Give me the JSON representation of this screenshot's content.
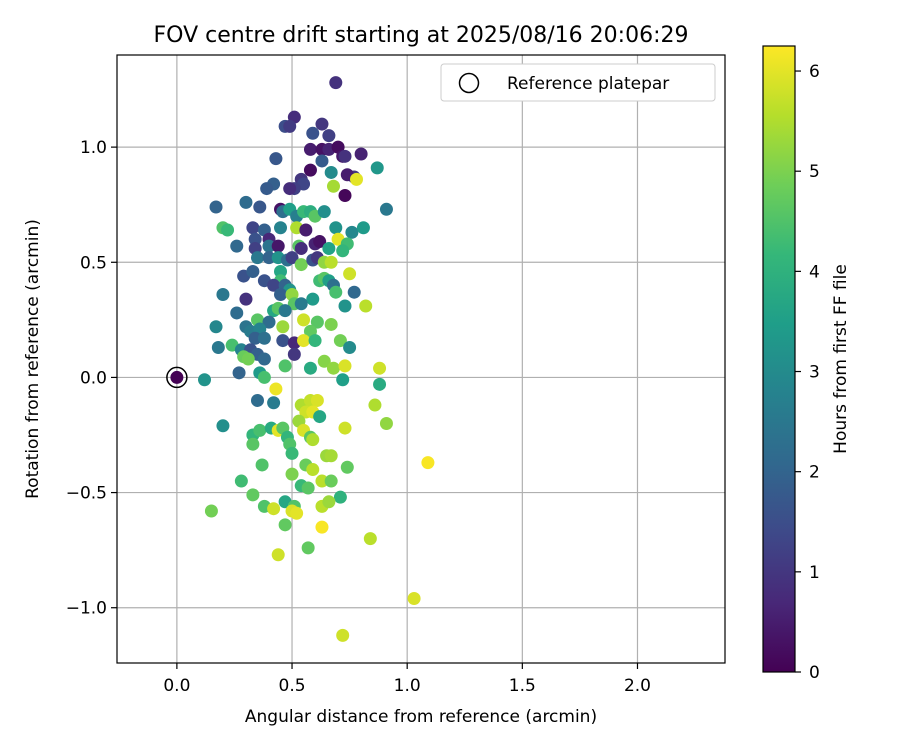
{
  "chart_data": {
    "type": "scatter",
    "title": "FOV centre drift starting at 2025/08/16 20:06:29",
    "xlabel": "Angular distance from reference (arcmin)",
    "ylabel": "Rotation from reference (arcmin)",
    "xlim": [
      -0.26,
      2.38
    ],
    "ylim": [
      -1.24,
      1.4
    ],
    "xticks": [
      0.0,
      0.5,
      1.0,
      1.5,
      2.0
    ],
    "xtick_labels": [
      "0.0",
      "0.5",
      "1.0",
      "1.5",
      "2.0"
    ],
    "yticks": [
      -1.0,
      -0.5,
      0.0,
      0.5,
      1.0
    ],
    "ytick_labels": [
      "−1.0",
      "−0.5",
      "0.0",
      "0.5",
      "1.0"
    ],
    "grid": true,
    "legend": {
      "position": "top-right",
      "label": "Reference platepar"
    },
    "reference_point": {
      "x": 0.0,
      "y": 0.0
    },
    "colorbar": {
      "label": "Hours from first FF file",
      "min": 0,
      "max": 6.25,
      "ticks": [
        0,
        1,
        2,
        3,
        4,
        5,
        6
      ],
      "tick_labels": [
        "0",
        "1",
        "2",
        "3",
        "4",
        "5",
        "6"
      ],
      "colormap": "viridis"
    },
    "points": [
      [
        0.69,
        1.28,
        0.9
      ],
      [
        0.51,
        1.13,
        0.8
      ],
      [
        0.63,
        1.1,
        1.0
      ],
      [
        0.47,
        1.09,
        1.5
      ],
      [
        0.49,
        1.09,
        1.1
      ],
      [
        0.59,
        1.06,
        1.6
      ],
      [
        0.66,
        1.05,
        1.2
      ],
      [
        0.58,
        0.99,
        0.5
      ],
      [
        0.63,
        0.99,
        0.3
      ],
      [
        0.66,
        0.99,
        0.6
      ],
      [
        0.7,
        1.0,
        0.2
      ],
      [
        0.72,
        0.96,
        0.4
      ],
      [
        0.73,
        0.96,
        0.9
      ],
      [
        0.8,
        0.97,
        0.6
      ],
      [
        0.63,
        0.94,
        1.8
      ],
      [
        0.43,
        0.95,
        1.7
      ],
      [
        0.58,
        0.9,
        0.2
      ],
      [
        0.54,
        0.86,
        1.0
      ],
      [
        0.55,
        0.84,
        1.3
      ],
      [
        0.51,
        0.82,
        1.2
      ],
      [
        0.49,
        0.82,
        0.8
      ],
      [
        0.77,
        0.87,
        1.0
      ],
      [
        0.74,
        0.88,
        0.5
      ],
      [
        0.67,
        0.89,
        3.0
      ],
      [
        0.68,
        0.83,
        5.4
      ],
      [
        0.87,
        0.91,
        3.3
      ],
      [
        0.73,
        0.79,
        0.1
      ],
      [
        0.78,
        0.86,
        6.0
      ],
      [
        0.42,
        0.84,
        1.9
      ],
      [
        0.39,
        0.82,
        1.8
      ],
      [
        0.17,
        0.74,
        2.0
      ],
      [
        0.3,
        0.76,
        2.2
      ],
      [
        0.36,
        0.74,
        1.7
      ],
      [
        0.45,
        0.73,
        0.3
      ],
      [
        0.46,
        0.72,
        2.3
      ],
      [
        0.49,
        0.73,
        3.5
      ],
      [
        0.52,
        0.7,
        2.7
      ],
      [
        0.55,
        0.72,
        4.2
      ],
      [
        0.58,
        0.72,
        3.9
      ],
      [
        0.6,
        0.7,
        4.6
      ],
      [
        0.64,
        0.72,
        3.1
      ],
      [
        0.91,
        0.73,
        2.5
      ],
      [
        0.2,
        0.65,
        4.5
      ],
      [
        0.22,
        0.64,
        4.2
      ],
      [
        0.33,
        0.65,
        1.3
      ],
      [
        0.38,
        0.64,
        1.9
      ],
      [
        0.34,
        0.6,
        1.6
      ],
      [
        0.4,
        0.6,
        0.7
      ],
      [
        0.45,
        0.65,
        2.8
      ],
      [
        0.52,
        0.65,
        5.5
      ],
      [
        0.56,
        0.64,
        0.5
      ],
      [
        0.69,
        0.65,
        3.2
      ],
      [
        0.76,
        0.63,
        2.9
      ],
      [
        0.81,
        0.65,
        3.4
      ],
      [
        0.7,
        0.6,
        6.0
      ],
      [
        0.74,
        0.58,
        4.3
      ],
      [
        0.26,
        0.57,
        2.1
      ],
      [
        0.34,
        0.56,
        1.2
      ],
      [
        0.4,
        0.57,
        2.4
      ],
      [
        0.44,
        0.57,
        0.4
      ],
      [
        0.53,
        0.57,
        4.6
      ],
      [
        0.54,
        0.56,
        0.8
      ],
      [
        0.6,
        0.58,
        0.6
      ],
      [
        0.62,
        0.59,
        0.3
      ],
      [
        0.66,
        0.56,
        3.6
      ],
      [
        0.72,
        0.55,
        4.1
      ],
      [
        0.35,
        0.52,
        2.5
      ],
      [
        0.4,
        0.52,
        2.0
      ],
      [
        0.44,
        0.52,
        3.2
      ],
      [
        0.48,
        0.51,
        2.3
      ],
      [
        0.5,
        0.52,
        1.2
      ],
      [
        0.54,
        0.49,
        4.9
      ],
      [
        0.59,
        0.51,
        1.6
      ],
      [
        0.61,
        0.52,
        1.0
      ],
      [
        0.64,
        0.5,
        5.2
      ],
      [
        0.67,
        0.5,
        5.6
      ],
      [
        0.29,
        0.44,
        1.6
      ],
      [
        0.33,
        0.46,
        1.9
      ],
      [
        0.45,
        0.46,
        3.7
      ],
      [
        0.45,
        0.42,
        4.3
      ],
      [
        0.38,
        0.42,
        1.6
      ],
      [
        0.42,
        0.4,
        1.3
      ],
      [
        0.47,
        0.4,
        2.0
      ],
      [
        0.49,
        0.38,
        3.2
      ],
      [
        0.62,
        0.42,
        4.3
      ],
      [
        0.64,
        0.43,
        4.6
      ],
      [
        0.66,
        0.42,
        3.5
      ],
      [
        0.68,
        0.4,
        2.3
      ],
      [
        0.69,
        0.37,
        4.4
      ],
      [
        0.75,
        0.45,
        5.8
      ],
      [
        0.77,
        0.37,
        2.1
      ],
      [
        0.2,
        0.36,
        2.5
      ],
      [
        0.3,
        0.34,
        0.9
      ],
      [
        0.45,
        0.36,
        1.9
      ],
      [
        0.5,
        0.36,
        5.2
      ],
      [
        0.51,
        0.32,
        4.6
      ],
      [
        0.59,
        0.34,
        3.4
      ],
      [
        0.54,
        0.32,
        2.6
      ],
      [
        0.73,
        0.31,
        3.2
      ],
      [
        0.82,
        0.31,
        5.6
      ],
      [
        0.26,
        0.28,
        2.2
      ],
      [
        0.42,
        0.29,
        3.7
      ],
      [
        0.44,
        0.3,
        4.6
      ],
      [
        0.47,
        0.29,
        2.5
      ],
      [
        0.35,
        0.25,
        4.6
      ],
      [
        0.4,
        0.24,
        2.2
      ],
      [
        0.55,
        0.25,
        5.8
      ],
      [
        0.61,
        0.24,
        4.6
      ],
      [
        0.67,
        0.23,
        5.0
      ],
      [
        0.17,
        0.22,
        2.9
      ],
      [
        0.3,
        0.22,
        2.4
      ],
      [
        0.32,
        0.2,
        2.6
      ],
      [
        0.36,
        0.21,
        2.8
      ],
      [
        0.46,
        0.22,
        5.3
      ],
      [
        0.58,
        0.2,
        4.7
      ],
      [
        0.34,
        0.17,
        1.9
      ],
      [
        0.38,
        0.17,
        2.3
      ],
      [
        0.46,
        0.16,
        1.6
      ],
      [
        0.51,
        0.15,
        0.7
      ],
      [
        0.55,
        0.16,
        6.0
      ],
      [
        0.6,
        0.16,
        4.1
      ],
      [
        0.71,
        0.16,
        4.9
      ],
      [
        0.75,
        0.13,
        3.0
      ],
      [
        0.18,
        0.13,
        2.5
      ],
      [
        0.24,
        0.14,
        4.4
      ],
      [
        0.28,
        0.12,
        2.8
      ],
      [
        0.32,
        0.12,
        1.6
      ],
      [
        0.35,
        0.1,
        1.9
      ],
      [
        0.38,
        0.08,
        2.1
      ],
      [
        0.29,
        0.09,
        4.8
      ],
      [
        0.31,
        0.08,
        4.9
      ],
      [
        0.51,
        0.1,
        1.0
      ],
      [
        0.64,
        0.07,
        5.1
      ],
      [
        0.47,
        0.05,
        4.5
      ],
      [
        0.58,
        0.04,
        3.8
      ],
      [
        0.68,
        0.04,
        5.2
      ],
      [
        0.73,
        0.05,
        5.9
      ],
      [
        0.88,
        0.04,
        5.8
      ],
      [
        0.27,
        0.02,
        2.0
      ],
      [
        0.36,
        0.02,
        3.4
      ],
      [
        0.38,
        0.0,
        4.4
      ],
      [
        0.72,
        -0.01,
        3.5
      ],
      [
        0.12,
        -0.01,
        3.2
      ],
      [
        0.43,
        -0.05,
        6.1
      ],
      [
        0.88,
        -0.03,
        3.8
      ],
      [
        0.35,
        -0.1,
        2.2
      ],
      [
        0.42,
        -0.11,
        2.6
      ],
      [
        0.54,
        -0.12,
        5.5
      ],
      [
        0.58,
        -0.1,
        5.7
      ],
      [
        0.61,
        -0.1,
        5.9
      ],
      [
        0.86,
        -0.12,
        5.5
      ],
      [
        0.56,
        -0.15,
        5.8
      ],
      [
        0.59,
        -0.15,
        6.0
      ],
      [
        0.62,
        -0.17,
        3.7
      ],
      [
        0.53,
        -0.19,
        5.3
      ],
      [
        0.2,
        -0.21,
        3.1
      ],
      [
        0.33,
        -0.25,
        4.1
      ],
      [
        0.36,
        -0.23,
        4.4
      ],
      [
        0.41,
        -0.22,
        3.8
      ],
      [
        0.44,
        -0.23,
        6.0
      ],
      [
        0.46,
        -0.22,
        4.6
      ],
      [
        0.55,
        -0.23,
        5.9
      ],
      [
        0.58,
        -0.26,
        4.6
      ],
      [
        0.73,
        -0.22,
        5.8
      ],
      [
        0.91,
        -0.2,
        5.2
      ],
      [
        0.33,
        -0.29,
        4.6
      ],
      [
        0.48,
        -0.26,
        4.1
      ],
      [
        0.49,
        -0.29,
        4.5
      ],
      [
        0.59,
        -0.27,
        5.5
      ],
      [
        1.09,
        -0.37,
        6.2
      ],
      [
        0.5,
        -0.33,
        4.2
      ],
      [
        0.65,
        -0.34,
        5.3
      ],
      [
        0.67,
        -0.34,
        5.4
      ],
      [
        0.37,
        -0.38,
        4.5
      ],
      [
        0.56,
        -0.38,
        4.8
      ],
      [
        0.59,
        -0.4,
        5.6
      ],
      [
        0.74,
        -0.39,
        4.7
      ],
      [
        0.5,
        -0.42,
        5.0
      ],
      [
        0.63,
        -0.45,
        5.6
      ],
      [
        0.67,
        -0.45,
        4.8
      ],
      [
        0.28,
        -0.45,
        4.3
      ],
      [
        0.33,
        -0.51,
        4.7
      ],
      [
        0.54,
        -0.47,
        4.2
      ],
      [
        0.57,
        -0.48,
        4.6
      ],
      [
        0.71,
        -0.52,
        4.0
      ],
      [
        0.47,
        -0.54,
        3.7
      ],
      [
        0.51,
        -0.56,
        4.5
      ],
      [
        0.63,
        -0.56,
        5.6
      ],
      [
        0.66,
        -0.54,
        5.3
      ],
      [
        0.15,
        -0.58,
        4.9
      ],
      [
        0.38,
        -0.56,
        4.5
      ],
      [
        0.42,
        -0.57,
        5.8
      ],
      [
        0.5,
        -0.58,
        5.9
      ],
      [
        0.52,
        -0.59,
        6.0
      ],
      [
        0.47,
        -0.64,
        4.7
      ],
      [
        0.63,
        -0.65,
        6.2
      ],
      [
        0.84,
        -0.7,
        5.6
      ],
      [
        0.44,
        -0.77,
        5.8
      ],
      [
        0.57,
        -0.74,
        4.7
      ],
      [
        1.03,
        -0.96,
        5.9
      ],
      [
        0.72,
        -1.12,
        5.8
      ]
    ]
  }
}
